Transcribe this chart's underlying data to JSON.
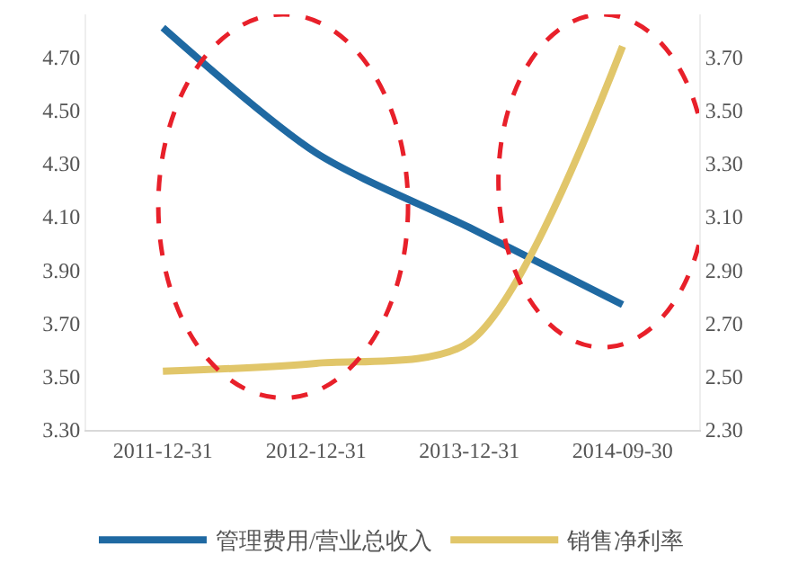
{
  "chart_data": {
    "type": "line",
    "categories": [
      "2011-12-31",
      "2012-12-31",
      "2013-12-31",
      "2014-09-30"
    ],
    "series": [
      {
        "name": "管理费用/营业总收入",
        "color": "#1f69a2",
        "values": [
          4.81,
          4.34,
          4.06,
          3.77
        ]
      },
      {
        "name": "销售净利率",
        "color": "#e1c66a",
        "values": [
          2.52,
          2.55,
          2.63,
          3.74
        ],
        "axis": "y2"
      }
    ],
    "ylim": [
      3.3,
      4.86
    ],
    "yticks": [
      {
        "value": 3.3,
        "label": "3.30"
      },
      {
        "value": 3.5,
        "label": "3.50"
      },
      {
        "value": 3.7,
        "label": "3.70"
      },
      {
        "value": 3.9,
        "label": "3.90"
      },
      {
        "value": 4.1,
        "label": "4.10"
      },
      {
        "value": 4.3,
        "label": "4.30"
      },
      {
        "value": 4.5,
        "label": "4.50"
      },
      {
        "value": 4.7,
        "label": "4.70"
      }
    ],
    "y2lim": [
      2.3,
      3.86
    ],
    "y2ticks": [
      {
        "value": 2.3,
        "label": "2.30"
      },
      {
        "value": 2.5,
        "label": "2.50"
      },
      {
        "value": 2.7,
        "label": "2.70"
      },
      {
        "value": 2.9,
        "label": "2.90"
      },
      {
        "value": 3.1,
        "label": "3.10"
      },
      {
        "value": 3.3,
        "label": "3.30"
      },
      {
        "value": 3.5,
        "label": "3.50"
      },
      {
        "value": 3.7,
        "label": "3.70"
      }
    ],
    "grid": false,
    "legend": "bottom",
    "marker": "none",
    "line_style": "solid"
  }
}
